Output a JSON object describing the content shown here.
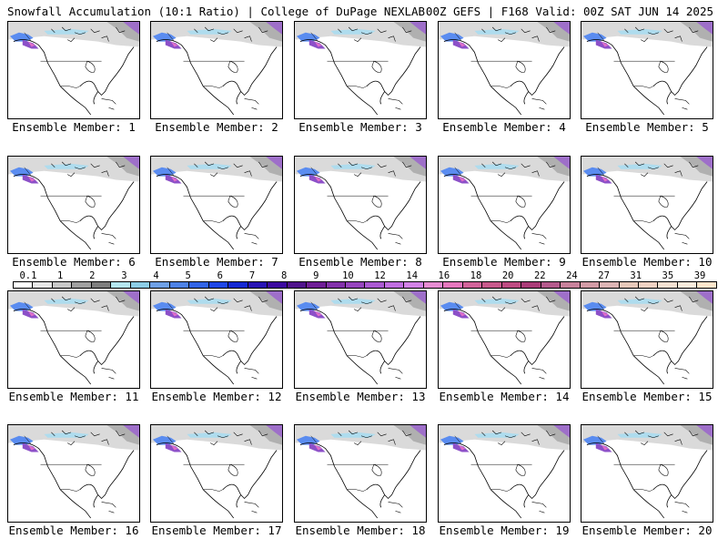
{
  "header": {
    "left": "Snowfall Accumulation (10:1 Ratio) | College of DuPage NEXLAB",
    "right": "00Z GEFS | F168 Valid: 00Z SAT JUN 14 2025"
  },
  "panels": [
    {
      "label": "Ensemble Member: 1"
    },
    {
      "label": "Ensemble Member: 2"
    },
    {
      "label": "Ensemble Member: 3"
    },
    {
      "label": "Ensemble Member: 4"
    },
    {
      "label": "Ensemble Member: 5"
    },
    {
      "label": "Ensemble Member: 6"
    },
    {
      "label": "Ensemble Member: 7"
    },
    {
      "label": "Ensemble Member: 8"
    },
    {
      "label": "Ensemble Member: 9"
    },
    {
      "label": "Ensemble Member: 10"
    },
    {
      "label": "Ensemble Member: 11"
    },
    {
      "label": "Ensemble Member: 12"
    },
    {
      "label": "Ensemble Member: 13"
    },
    {
      "label": "Ensemble Member: 14"
    },
    {
      "label": "Ensemble Member: 15"
    },
    {
      "label": "Ensemble Member: 16"
    },
    {
      "label": "Ensemble Member: 17"
    },
    {
      "label": "Ensemble Member: 18"
    },
    {
      "label": "Ensemble Member: 19"
    },
    {
      "label": "Ensemble Member: 20"
    }
  ],
  "colorbar": {
    "ticks": [
      "0.1",
      "1",
      "2",
      "3",
      "4",
      "5",
      "6",
      "7",
      "8",
      "9",
      "10",
      "12",
      "14",
      "16",
      "18",
      "20",
      "22",
      "24",
      "27",
      "31",
      "35",
      "39"
    ],
    "colors": [
      "#ffffff",
      "#e6e6e6",
      "#c8c8c8",
      "#a0a0a0",
      "#7e7e7e",
      "#b4e6f0",
      "#8ccde6",
      "#6ea0e6",
      "#4e82e6",
      "#3264e6",
      "#1e46e6",
      "#1428d2",
      "#2814b4",
      "#3c0aa0",
      "#50148c",
      "#6e1e96",
      "#8232aa",
      "#9646be",
      "#aa5ad2",
      "#c06ee0",
      "#d282e6",
      "#e68cd2",
      "#e678be",
      "#d2649a",
      "#c85a8c",
      "#be4b82",
      "#aa3c78",
      "#b45a8c",
      "#c8829b",
      "#d29ba5",
      "#dcb4b4",
      "#e6c8b9",
      "#f0d2c3",
      "#f5e1d2",
      "#faebdc",
      "#ffe6cc"
    ]
  }
}
